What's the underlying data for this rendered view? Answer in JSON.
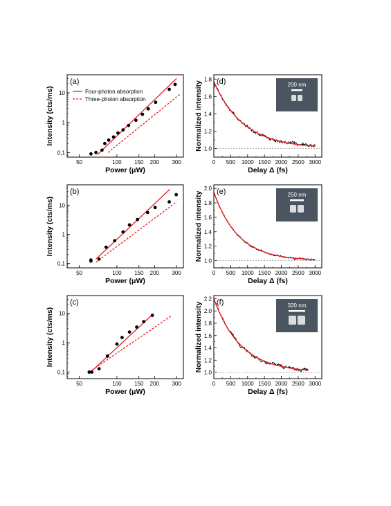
{
  "legend": {
    "four_photon": "Four-photon absorption",
    "three_photon": "Three-photon absorption"
  },
  "colors": {
    "fit": "#ee1c24",
    "data": "#000000",
    "sem_background": "#4a5560",
    "sem_particle": "#d8dde0",
    "guide": "#9a9a9a"
  },
  "chart_data": [
    {
      "id": "a",
      "letter": "(a)",
      "type": "scatter",
      "scale": "log-log",
      "xlabel": "Power (μW)",
      "ylabel": "Intensity (cts/ms)",
      "xlim": [
        40,
        340
      ],
      "ylim": [
        0.07,
        40
      ],
      "xticks": [
        50,
        100,
        150,
        200,
        300
      ],
      "xtick_labels": [
        "50",
        "100",
        "150",
        "200",
        "300"
      ],
      "yticks": [
        0.1,
        1,
        10
      ],
      "ytick_labels": [
        "0,1",
        "1",
        "10"
      ],
      "legend": "top-left",
      "points": [
        {
          "x": 62,
          "y": 0.09
        },
        {
          "x": 68,
          "y": 0.1
        },
        {
          "x": 76,
          "y": 0.12
        },
        {
          "x": 80,
          "y": 0.2
        },
        {
          "x": 86,
          "y": 0.26
        },
        {
          "x": 94,
          "y": 0.33
        },
        {
          "x": 102,
          "y": 0.45
        },
        {
          "x": 112,
          "y": 0.57
        },
        {
          "x": 124,
          "y": 0.8
        },
        {
          "x": 142,
          "y": 1.2
        },
        {
          "x": 160,
          "y": 1.9
        },
        {
          "x": 178,
          "y": 2.9
        },
        {
          "x": 204,
          "y": 4.8
        },
        {
          "x": 262,
          "y": 13
        },
        {
          "x": 292,
          "y": 19
        }
      ],
      "fits": [
        {
          "name": "Four-photon absorption",
          "style": "solid",
          "x": [
            70,
            300
          ],
          "y": [
            0.085,
            30
          ]
        },
        {
          "name": "Three-photon absorption",
          "style": "dashed",
          "x": [
            85,
            320
          ],
          "y": [
            0.1,
            9
          ]
        }
      ]
    },
    {
      "id": "b",
      "letter": "(b)",
      "type": "scatter",
      "scale": "log-log",
      "xlabel": "Power (μW)",
      "ylabel": "Intensity (cts/ms)",
      "xlim": [
        40,
        340
      ],
      "ylim": [
        0.07,
        50
      ],
      "xticks": [
        50,
        100,
        150,
        200,
        300
      ],
      "xtick_labels": [
        "50",
        "100",
        "150",
        "200",
        "300"
      ],
      "yticks": [
        0.1,
        1,
        10
      ],
      "ytick_labels": [
        "0,1",
        "1",
        "10"
      ],
      "points": [
        {
          "x": 62,
          "y": 0.12
        },
        {
          "x": 62,
          "y": 0.13
        },
        {
          "x": 72,
          "y": 0.14
        },
        {
          "x": 82,
          "y": 0.36
        },
        {
          "x": 96,
          "y": 0.6
        },
        {
          "x": 112,
          "y": 1.2
        },
        {
          "x": 126,
          "y": 2.1
        },
        {
          "x": 146,
          "y": 3.2
        },
        {
          "x": 176,
          "y": 5.6
        },
        {
          "x": 202,
          "y": 8.3
        },
        {
          "x": 262,
          "y": 13
        },
        {
          "x": 298,
          "y": 23
        }
      ],
      "fits": [
        {
          "name": "Four-photon absorption",
          "style": "solid",
          "x": [
            68,
            265
          ],
          "y": [
            0.14,
            35
          ]
        },
        {
          "name": "Three-photon absorption",
          "style": "dashed",
          "x": [
            68,
            300
          ],
          "y": [
            0.11,
            13
          ]
        }
      ]
    },
    {
      "id": "c",
      "letter": "(c)",
      "type": "scatter",
      "scale": "log-log",
      "xlabel": "Power (μW)",
      "ylabel": "Intensity (cts/ms)",
      "xlim": [
        40,
        340
      ],
      "ylim": [
        0.06,
        40
      ],
      "xticks": [
        50,
        100,
        150,
        200,
        300
      ],
      "xtick_labels": [
        "50",
        "100",
        "150",
        "200",
        "300"
      ],
      "yticks": [
        0.1,
        1,
        10
      ],
      "ytick_labels": [
        "0,1",
        "1",
        "10"
      ],
      "points": [
        {
          "x": 60,
          "y": 0.1
        },
        {
          "x": 63,
          "y": 0.1
        },
        {
          "x": 72,
          "y": 0.13
        },
        {
          "x": 84,
          "y": 0.35
        },
        {
          "x": 100,
          "y": 0.9
        },
        {
          "x": 110,
          "y": 1.5
        },
        {
          "x": 126,
          "y": 2.3
        },
        {
          "x": 144,
          "y": 3.4
        },
        {
          "x": 164,
          "y": 5.2
        },
        {
          "x": 192,
          "y": 8.5
        }
      ],
      "fits": [
        {
          "name": "Four-photon absorption",
          "style": "solid",
          "x": [
            60,
            195
          ],
          "y": [
            0.09,
            9.5
          ]
        },
        {
          "name": "Three-photon absorption",
          "style": "dashed",
          "x": [
            60,
            270
          ],
          "y": [
            0.1,
            8
          ]
        }
      ]
    },
    {
      "id": "d",
      "letter": "(d)",
      "type": "line",
      "scale": "linear",
      "xlabel": "Delay Δ (fs)",
      "ylabel": "Normalized intensity",
      "xlim": [
        0,
        3200
      ],
      "ylim": [
        0.9,
        1.85
      ],
      "xticks": [
        0,
        500,
        1000,
        1500,
        2000,
        2500,
        3000
      ],
      "xtick_labels": [
        "0",
        "500",
        "1000",
        "1500",
        "2000",
        "2500",
        "3000"
      ],
      "yticks": [
        1.0,
        1.2,
        1.4,
        1.6,
        1.8
      ],
      "ytick_labels": [
        "1.0",
        "1.2",
        "1.4",
        "1.6",
        "1.8"
      ],
      "baseline": 1.0,
      "fit": {
        "offset": 1.0,
        "amplitude": 0.77,
        "tau_fs": 880,
        "x_end": 3000
      },
      "noise_amplitude": 0.014,
      "scale_bar": "200 nm",
      "sem_particles": 2,
      "sem_size": "small"
    },
    {
      "id": "e",
      "letter": "(e)",
      "type": "line",
      "scale": "linear",
      "xlabel": "Delay Δ (fs)",
      "ylabel": "Normalized intensity",
      "xlim": [
        0,
        3200
      ],
      "ylim": [
        0.9,
        2.05
      ],
      "xticks": [
        0,
        500,
        1000,
        1500,
        2000,
        2500,
        3000
      ],
      "xtick_labels": [
        "0",
        "500",
        "1000",
        "1500",
        "2000",
        "2500",
        "3000"
      ],
      "yticks": [
        1.0,
        1.2,
        1.4,
        1.6,
        1.8,
        2.0
      ],
      "ytick_labels": [
        "1.0",
        "1.2",
        "1.4",
        "1.6",
        "1.8",
        "2.0"
      ],
      "baseline": 1.0,
      "fit": {
        "offset": 1.0,
        "amplitude": 0.95,
        "tau_fs": 720,
        "x_end": 3000
      },
      "noise_amplitude": 0.01,
      "scale_bar": "250 nm",
      "sem_particles": 2,
      "sem_size": "medium"
    },
    {
      "id": "f",
      "letter": "(f)",
      "type": "line",
      "scale": "linear",
      "xlabel": "Delay Δ (fs)",
      "ylabel": "Normalized intensity",
      "xlim": [
        0,
        3200
      ],
      "ylim": [
        0.9,
        2.25
      ],
      "xticks": [
        0,
        500,
        1000,
        1500,
        2000,
        2500,
        3000
      ],
      "xtick_labels": [
        "0",
        "500",
        "1000",
        "1500",
        "2000",
        "2500",
        "3000"
      ],
      "yticks": [
        1.0,
        1.2,
        1.4,
        1.6,
        1.8,
        2.0,
        2.2
      ],
      "ytick_labels": [
        "1.0",
        "1.2",
        "1.4",
        "1.6",
        "1.8",
        "2.0",
        "2.2"
      ],
      "baseline": 1.0,
      "fit": {
        "offset": 1.0,
        "amplitude": 1.2,
        "tau_fs": 800,
        "x_end": 2800
      },
      "noise_amplitude": 0.02,
      "scale_bar": "320 nm",
      "sem_particles": 2,
      "sem_size": "large"
    }
  ]
}
